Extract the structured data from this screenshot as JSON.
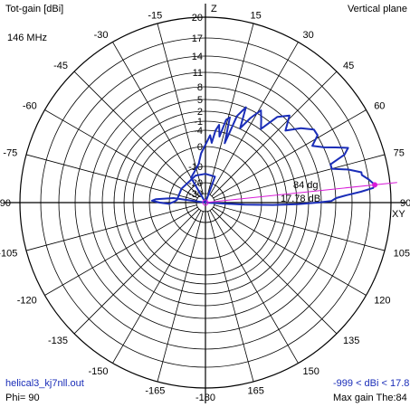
{
  "header": {
    "left_title": "Tot-gain [dBi]",
    "frequency": "146 MHz",
    "right_title": "Vertical plane"
  },
  "footer": {
    "file": "helical3_kj7nll.out",
    "phi": "Phi= 90",
    "range": "-999 < dBi < 17.8",
    "max_gain": "Max gain The:84"
  },
  "axis_labels": {
    "top": "Z",
    "right": "XY"
  },
  "annotations": {
    "angle": "84 dg",
    "gain": "17.78 dB"
  },
  "colors": {
    "pattern": "#1a2db8",
    "marker": "#d81cd8",
    "grid": "#000000"
  },
  "chart_data": {
    "type": "polar",
    "radial_ticks": [
      "20",
      "17",
      "14",
      "11",
      "8",
      "5",
      "2",
      "-1",
      "-4",
      "0",
      "-10",
      "-20",
      "-30"
    ],
    "angle_ticks": [
      {
        "label": "-15",
        "theta": -15
      },
      {
        "label": "15",
        "theta": 15
      },
      {
        "label": "-30",
        "theta": -30
      },
      {
        "label": "30",
        "theta": 30
      },
      {
        "label": "-45",
        "theta": -45
      },
      {
        "label": "45",
        "theta": 45
      },
      {
        "label": "-60",
        "theta": -60
      },
      {
        "label": "60",
        "theta": 60
      },
      {
        "label": "-75",
        "theta": -75
      },
      {
        "label": "75",
        "theta": 75
      },
      {
        "label": "-90",
        "theta": -90
      },
      {
        "label": "90",
        "theta": 90
      },
      {
        "label": "-105",
        "theta": -105
      },
      {
        "label": "105",
        "theta": 105
      },
      {
        "label": "-120",
        "theta": -120
      },
      {
        "label": "120",
        "theta": 120
      },
      {
        "label": "-135",
        "theta": -135
      },
      {
        "label": "135",
        "theta": 135
      },
      {
        "label": "-150",
        "theta": -150
      },
      {
        "label": "150",
        "theta": 150
      },
      {
        "label": "-165",
        "theta": -165
      },
      {
        "label": "165",
        "theta": 165
      },
      {
        "label": "-180",
        "theta": 180
      }
    ],
    "max_gain_theta": 84,
    "max_gain_dbi": 17.78,
    "pattern": {
      "units": "theta_deg, gain_dbi",
      "points": [
        [
          -92,
          -22
        ],
        [
          -90,
          -16
        ],
        [
          -88,
          -12
        ],
        [
          -86,
          -14
        ],
        [
          -84,
          -20
        ],
        [
          -82,
          -25
        ],
        [
          -80,
          -30
        ],
        [
          -75,
          -32
        ],
        [
          -60,
          -31
        ],
        [
          -45,
          -30
        ],
        [
          -30,
          -28
        ],
        [
          -18,
          -24
        ],
        [
          -10,
          -20
        ],
        [
          -5,
          -14
        ],
        [
          0,
          -10
        ],
        [
          4,
          -6
        ],
        [
          6,
          -9
        ],
        [
          8,
          -4
        ],
        [
          10,
          -2
        ],
        [
          12,
          -6
        ],
        [
          14,
          0
        ],
        [
          16,
          1
        ],
        [
          18,
          -8
        ],
        [
          20,
          2
        ],
        [
          23,
          5
        ],
        [
          25,
          -1
        ],
        [
          28,
          3
        ],
        [
          31,
          6
        ],
        [
          34,
          4
        ],
        [
          37,
          2
        ],
        [
          40,
          7
        ],
        [
          44,
          9
        ],
        [
          48,
          6
        ],
        [
          52,
          9
        ],
        [
          56,
          11
        ],
        [
          59,
          11
        ],
        [
          62,
          9
        ],
        [
          65,
          11
        ],
        [
          67,
          13
        ],
        [
          69,
          15
        ],
        [
          71,
          14
        ],
        [
          73,
          11
        ],
        [
          75,
          11
        ],
        [
          77,
          14
        ],
        [
          79,
          16
        ],
        [
          80,
          16
        ],
        [
          82,
          17
        ],
        [
          84,
          17.78
        ],
        [
          85,
          17.5
        ],
        [
          86,
          15.5
        ],
        [
          87,
          13
        ],
        [
          88,
          11
        ],
        [
          89.3,
          10
        ],
        [
          90,
          7
        ],
        [
          91,
          2
        ],
        [
          92,
          -6
        ],
        [
          93,
          -20
        ],
        [
          90,
          -30
        ],
        [
          80,
          -32
        ],
        [
          60,
          -31
        ],
        [
          40,
          -30
        ],
        [
          20,
          -29
        ],
        [
          0,
          -28
        ],
        [
          -20,
          -28
        ],
        [
          -60,
          -29
        ],
        [
          -85,
          -28
        ],
        [
          -88,
          -26
        ],
        [
          -90,
          -24
        ],
        [
          -92,
          -22
        ]
      ]
    }
  }
}
